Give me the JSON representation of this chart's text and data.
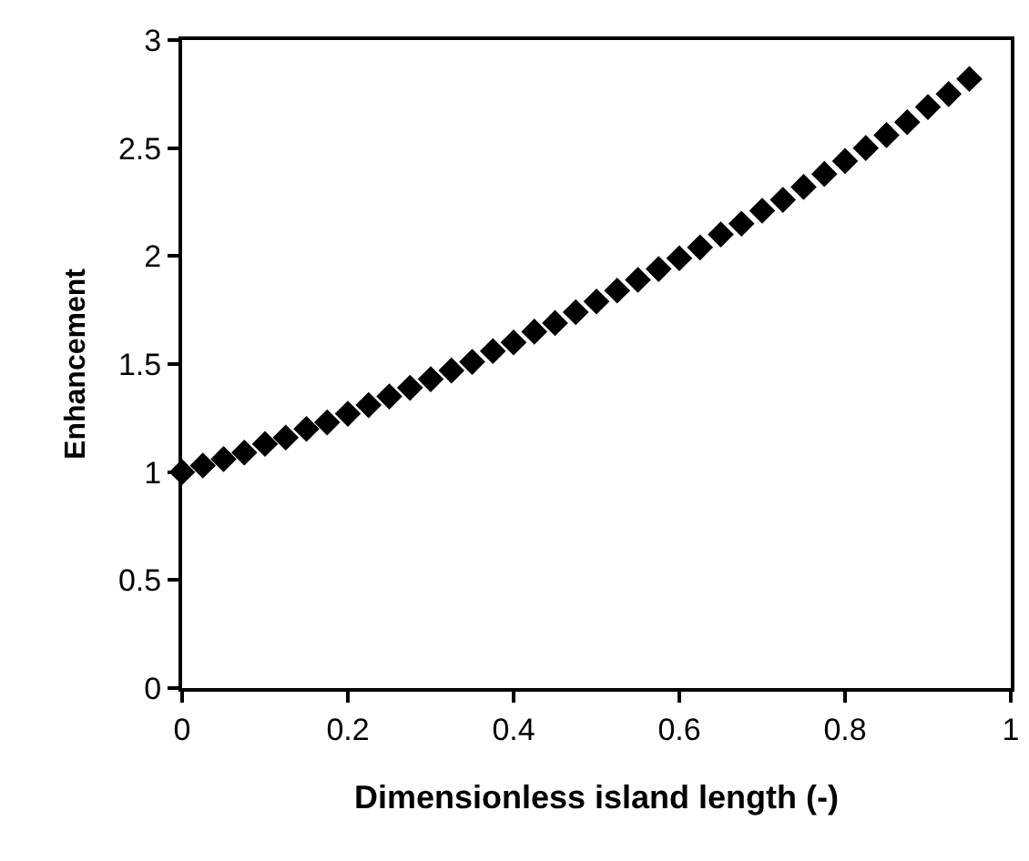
{
  "chart_data": {
    "type": "scatter",
    "xlabel": "Dimensionless island length (-)",
    "ylabel": "Enhancement",
    "x": [
      0,
      0.025,
      0.05,
      0.075,
      0.1,
      0.125,
      0.15,
      0.175,
      0.2,
      0.225,
      0.25,
      0.275,
      0.3,
      0.325,
      0.35,
      0.375,
      0.4,
      0.425,
      0.45,
      0.475,
      0.5,
      0.525,
      0.55,
      0.575,
      0.6,
      0.625,
      0.65,
      0.675,
      0.7,
      0.725,
      0.75,
      0.775,
      0.8,
      0.825,
      0.85,
      0.875,
      0.9,
      0.925,
      0.95
    ],
    "series": [
      {
        "color": "#000000",
        "values": [
          1.0,
          1.03,
          1.06,
          1.09,
          1.13,
          1.16,
          1.2,
          1.23,
          1.27,
          1.31,
          1.35,
          1.39,
          1.43,
          1.47,
          1.51,
          1.56,
          1.6,
          1.65,
          1.69,
          1.74,
          1.79,
          1.84,
          1.89,
          1.94,
          1.99,
          2.04,
          2.1,
          2.15,
          2.21,
          2.26,
          2.32,
          2.38,
          2.44,
          2.5,
          2.56,
          2.62,
          2.69,
          2.75,
          2.82
        ]
      }
    ],
    "xlim": [
      0,
      1
    ],
    "xticks": [
      0,
      0.2,
      0.4,
      0.6,
      0.8,
      1
    ],
    "ylim": [
      0,
      3
    ],
    "yticks": [
      0,
      0.5,
      1,
      1.5,
      2,
      2.5,
      3
    ],
    "marker": "diamond"
  }
}
